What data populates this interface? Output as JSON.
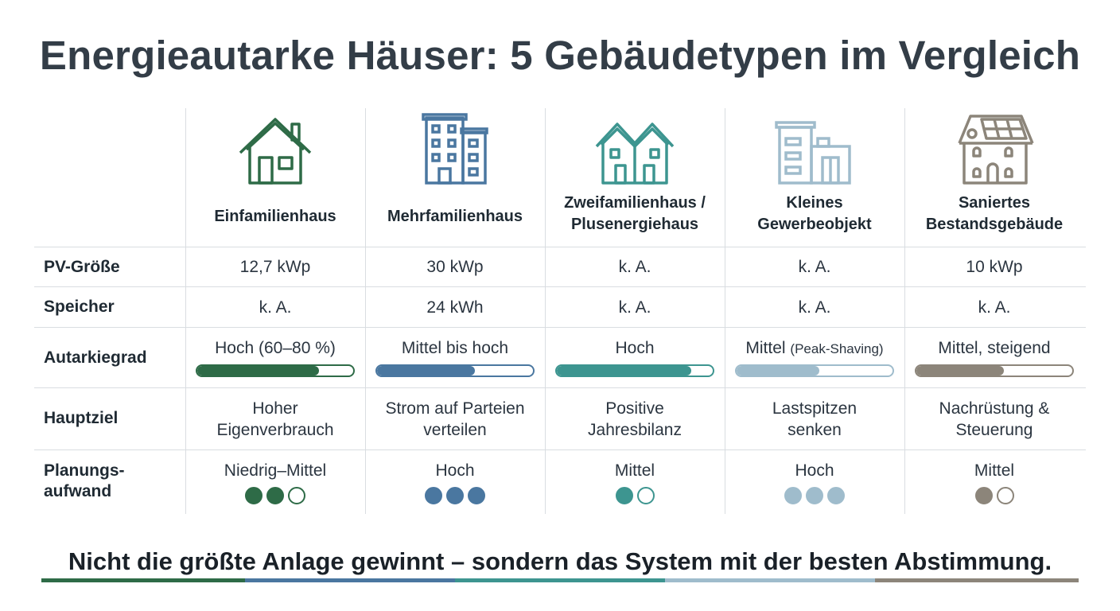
{
  "title": "Energieautarke Häuser: 5 Gebäudetypen im Vergleich",
  "row_labels": {
    "pv": "PV-Größe",
    "speicher": "Speicher",
    "autarkie": "Autarkiegrad",
    "hauptziel": "Hauptziel",
    "planung_1": "Planungs-",
    "planung_2": "aufwand"
  },
  "columns": [
    {
      "name_1": "",
      "name_2": "Einfamilienhaus",
      "icon": "single-family-house-icon",
      "color": "#2e6b47",
      "pv": "12,7 kWp",
      "speicher": "k. A.",
      "autarkie": "Hoch (60–80 %)",
      "autarkie_note": "",
      "autarkie_level": 0.78,
      "hauptziel_1": "Hoher",
      "hauptziel_2": "Eigenverbrauch",
      "planung": "Niedrig–Mittel",
      "planung_dots_filled": 2,
      "planung_dots_total": 3
    },
    {
      "name_1": "",
      "name_2": "Mehrfamilienhaus",
      "icon": "apartment-building-icon",
      "color": "#4a77a0",
      "pv": "30 kWp",
      "speicher": "24 kWh",
      "autarkie": "Mittel bis hoch",
      "autarkie_note": "",
      "autarkie_level": 0.63,
      "hauptziel_1": "Strom auf Parteien",
      "hauptziel_2": "verteilen",
      "planung": "Hoch",
      "planung_dots_filled": 3,
      "planung_dots_total": 3
    },
    {
      "name_1": "Zweifamilienhaus /",
      "name_2": "Plusenergiehaus",
      "icon": "duplex-house-icon",
      "color": "#3d9590",
      "pv": "k. A.",
      "speicher": "k. A.",
      "autarkie": "Hoch",
      "autarkie_note": "",
      "autarkie_level": 0.86,
      "hauptziel_1": "Positive",
      "hauptziel_2": "Jahresbilanz",
      "planung": "Mittel",
      "planung_dots_filled": 1,
      "planung_dots_total": 2
    },
    {
      "name_1": "Kleines",
      "name_2": "Gewerbeobjekt",
      "icon": "commercial-building-icon",
      "color": "#9fbccc",
      "pv": "k. A.",
      "speicher": "k. A.",
      "autarkie": "Mittel",
      "autarkie_note": "(Peak-Shaving)",
      "autarkie_level": 0.53,
      "hauptziel_1": "Lastspitzen",
      "hauptziel_2": "senken",
      "planung": "Hoch",
      "planung_dots_filled": 3,
      "planung_dots_total": 3
    },
    {
      "name_1": "Saniertes",
      "name_2": "Bestandsgebäude",
      "icon": "renovated-building-solar-icon",
      "color": "#8c857a",
      "pv": "10 kWp",
      "speicher": "k. A.",
      "autarkie": "Mittel, steigend",
      "autarkie_note": "",
      "autarkie_level": 0.56,
      "hauptziel_1": "Nachrüstung &",
      "hauptziel_2": "Steuerung",
      "planung": "Mittel",
      "planung_dots_filled": 1,
      "planung_dots_total": 2
    }
  ],
  "footer": "Nicht die größte Anlage gewinnt – sondern das System mit der besten Abstimmung."
}
